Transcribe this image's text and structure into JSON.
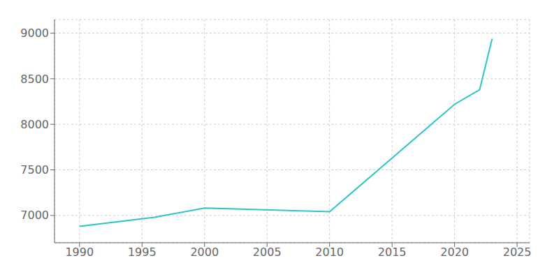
{
  "chart_data": {
    "type": "line",
    "x": [
      1990,
      1996,
      2000,
      2010,
      2020,
      2022,
      2023
    ],
    "values": [
      6880,
      6980,
      7080,
      7040,
      8220,
      8380,
      8940
    ],
    "color": "#2EC4C4",
    "xlim": [
      1988,
      2026
    ],
    "ylim": [
      6700,
      9150
    ],
    "xticks": [
      1990,
      1995,
      2000,
      2005,
      2010,
      2015,
      2020,
      2025
    ],
    "yticks": [
      7000,
      7500,
      8000,
      8500,
      9000
    ],
    "grid": true
  }
}
